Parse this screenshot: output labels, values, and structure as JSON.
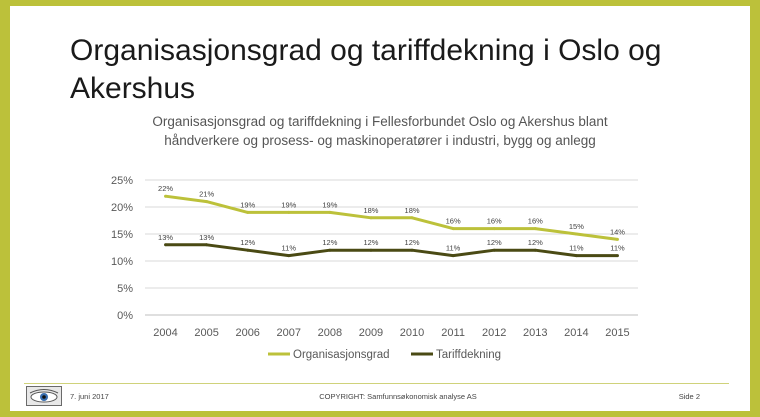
{
  "slide": {
    "title": "Organisasjonsgrad og tariffdekning i Oslo og Akershus"
  },
  "footer": {
    "date": "7. juni 2017",
    "copyright": "COPYRIGHT: Samfunnsøkonomisk analyse AS",
    "page": "Side 2"
  },
  "chart_data": {
    "type": "line",
    "title": "Organisasjonsgrad og tariffdekning i Fellesforbundet Oslo og Akershus blant håndverkere og prosess- og maskinoperatører i industri, bygg og anlegg",
    "categories": [
      "2004",
      "2005",
      "2006",
      "2007",
      "2008",
      "2009",
      "2010",
      "2011",
      "2012",
      "2013",
      "2014",
      "2015"
    ],
    "y_ticks": [
      "0%",
      "5%",
      "10%",
      "15%",
      "20%",
      "25%"
    ],
    "ylim": [
      0,
      25
    ],
    "grid": true,
    "legend_position": "bottom",
    "series": [
      {
        "name": "Organisasjonsgrad",
        "color": "#bcc13a",
        "values": [
          22,
          21,
          19,
          19,
          19,
          18,
          18,
          16,
          16,
          16,
          15,
          14
        ],
        "labels": [
          "22%",
          "21%",
          "19%",
          "19%",
          "19%",
          "18%",
          "18%",
          "16%",
          "16%",
          "16%",
          "15%",
          "14%"
        ]
      },
      {
        "name": "Tariffdekning",
        "color": "#4a4a14",
        "values": [
          13,
          13,
          12,
          11,
          12,
          12,
          12,
          11,
          12,
          12,
          11,
          11
        ],
        "labels": [
          "13%",
          "13%",
          "12%",
          "11%",
          "12%",
          "12%",
          "12%",
          "11%",
          "12%",
          "12%",
          "11%",
          "11%"
        ]
      }
    ]
  }
}
